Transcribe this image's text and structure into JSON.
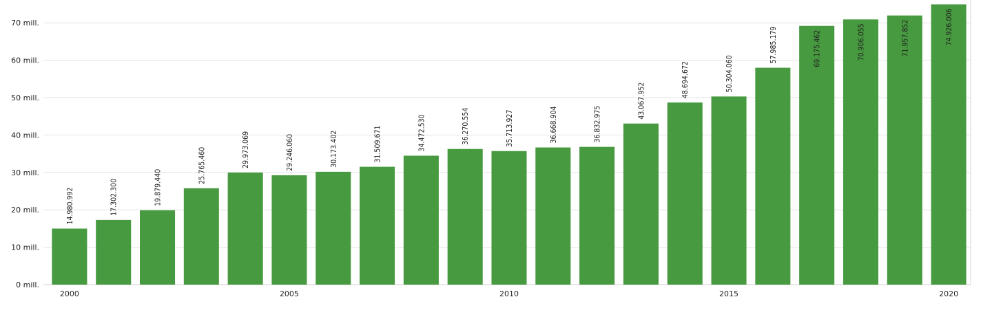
{
  "chart_data": {
    "type": "bar",
    "title": "",
    "xlabel": "",
    "ylabel": "",
    "categories": [
      "2000",
      "2001",
      "2002",
      "2003",
      "2004",
      "2005",
      "2006",
      "2007",
      "2008",
      "2009",
      "2010",
      "2011",
      "2012",
      "2013",
      "2014",
      "2015",
      "2016",
      "2017",
      "2018",
      "2019",
      "2020"
    ],
    "x_tick_labels_shown": [
      "2000",
      "2005",
      "2010",
      "2015",
      "2020"
    ],
    "values": [
      14980992,
      17302300,
      19879440,
      25765460,
      29973069,
      29246060,
      30173402,
      31509671,
      34472530,
      36270554,
      35713927,
      36668904,
      36832975,
      43067952,
      48694672,
      50304060,
      57985179,
      69175462,
      70906055,
      71957852,
      74926006
    ],
    "data_labels": [
      "14.980.992",
      "17.302.300",
      "19.879.440",
      "25.765.460",
      "29.973.069",
      "29.246.060",
      "30.173.402",
      "31.509.671",
      "34.472.530",
      "36.270.554",
      "35.713.927",
      "36.668.904",
      "36.832.975",
      "43.067.952",
      "48.694.672",
      "50.304.060",
      "57.985.179",
      "69.175.462",
      "70.906.055",
      "71.957.852",
      "74.926.006"
    ],
    "y_ticks": [
      0,
      10000000,
      20000000,
      30000000,
      40000000,
      50000000,
      60000000,
      70000000
    ],
    "y_tick_labels": [
      "0 mill.",
      "10 mill.",
      "20 mill.",
      "30 mill.",
      "40 mill.",
      "50 mill.",
      "60 mill.",
      "70 mill."
    ],
    "ylim": [
      0,
      75000000
    ],
    "grid": true,
    "legend": "none",
    "bar_color": "#479a3f"
  }
}
